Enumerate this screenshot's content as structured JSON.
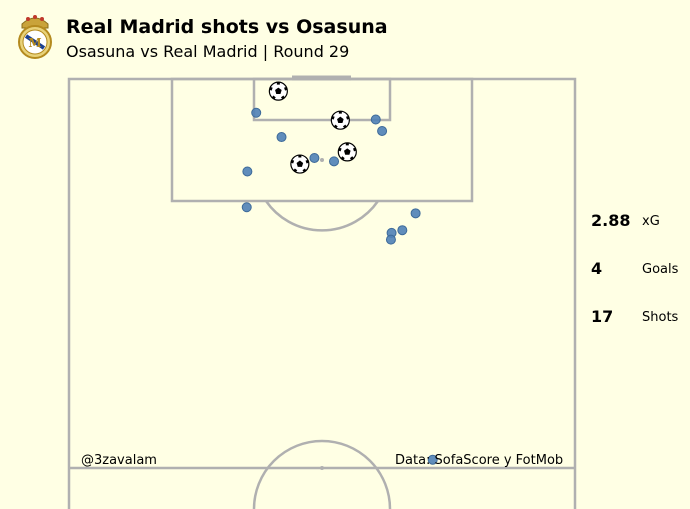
{
  "header": {
    "title": "Real Madrid shots vs Osasuna",
    "subtitle": "Osasuna vs Real Madrid | Round 29"
  },
  "stats": [
    {
      "value": "2.88",
      "label": "xG"
    },
    {
      "value": "4",
      "label": "Goals"
    },
    {
      "value": "17",
      "label": "Shots"
    }
  ],
  "footer": {
    "author": "@3zavalam",
    "source": "Data: SofaScore y FotMob"
  },
  "colors": {
    "background": "#ffffe4",
    "pitch_lines": "#b0b0b0",
    "shot": "#4f81b6"
  },
  "chart_data": {
    "type": "scatter",
    "coordinate_space": "StatsBomb pitch 120x80, attacking half",
    "shots": [
      {
        "x": 118.2,
        "y": 33.1,
        "outcome": "goal"
      },
      {
        "x": 113.9,
        "y": 42.9,
        "outcome": "goal"
      },
      {
        "x": 109.2,
        "y": 44.0,
        "outcome": "goal"
      },
      {
        "x": 107.4,
        "y": 36.5,
        "outcome": "goal"
      },
      {
        "x": 114.0,
        "y": 48.5,
        "outcome": "shot"
      },
      {
        "x": 115.0,
        "y": 29.6,
        "outcome": "shot"
      },
      {
        "x": 111.4,
        "y": 33.6,
        "outcome": "shot"
      },
      {
        "x": 112.3,
        "y": 49.5,
        "outcome": "shot"
      },
      {
        "x": 108.3,
        "y": 38.8,
        "outcome": "shot"
      },
      {
        "x": 107.8,
        "y": 41.9,
        "outcome": "shot"
      },
      {
        "x": 106.3,
        "y": 28.2,
        "outcome": "shot"
      },
      {
        "x": 101.0,
        "y": 28.1,
        "outcome": "shot"
      },
      {
        "x": 100.1,
        "y": 54.8,
        "outcome": "shot"
      },
      {
        "x": 97.6,
        "y": 52.7,
        "outcome": "shot"
      },
      {
        "x": 97.2,
        "y": 51.0,
        "outcome": "shot"
      },
      {
        "x": 96.2,
        "y": 50.9,
        "outcome": "shot"
      },
      {
        "x": 63.6,
        "y": 57.5,
        "outcome": "shot"
      }
    ]
  }
}
